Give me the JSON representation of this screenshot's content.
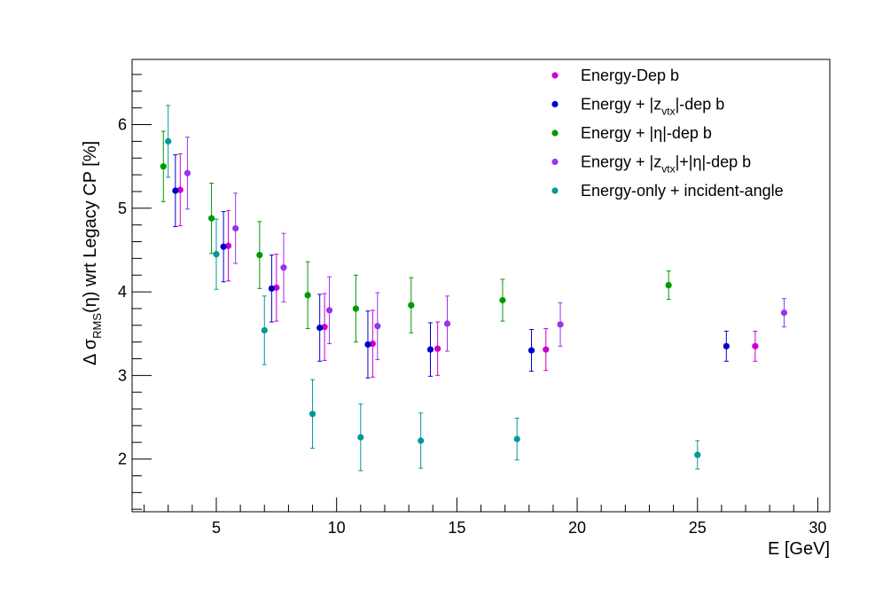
{
  "chart_data": {
    "type": "scatter",
    "title": "",
    "xlabel": "E  [GeV]",
    "ylabel_parts": [
      "Δ σ",
      "RMS",
      "(η) wrt Legacy CP  [%]"
    ],
    "xlim": [
      1.5,
      30.5
    ],
    "ylim": [
      1.37,
      6.78
    ],
    "x_ticks": [
      5,
      10,
      15,
      20,
      25,
      30
    ],
    "y_ticks": [
      2,
      3,
      4,
      5,
      6
    ],
    "grid": false,
    "legend_position": "top-right",
    "series": [
      {
        "name_parts": [
          [
            "Energy-Dep b",
            false
          ]
        ],
        "color": "#cc00cc",
        "points": [
          {
            "x": 3.5,
            "y": 5.22,
            "err": 0.43
          },
          {
            "x": 5.5,
            "y": 4.55,
            "err": 0.42
          },
          {
            "x": 7.5,
            "y": 4.05,
            "err": 0.4
          },
          {
            "x": 9.5,
            "y": 3.58,
            "err": 0.4
          },
          {
            "x": 11.5,
            "y": 3.38,
            "err": 0.4
          },
          {
            "x": 14.2,
            "y": 3.32,
            "err": 0.32
          },
          {
            "x": 18.7,
            "y": 3.31,
            "err": 0.25
          },
          {
            "x": 27.4,
            "y": 3.35,
            "err": 0.18
          }
        ]
      },
      {
        "name_parts": [
          [
            "Energy + |z",
            false
          ],
          [
            "vtx",
            true
          ],
          [
            "|-dep b",
            false
          ]
        ],
        "color": "#0000cc",
        "points": [
          {
            "x": 3.3,
            "y": 5.21,
            "err": 0.43
          },
          {
            "x": 5.3,
            "y": 4.54,
            "err": 0.42
          },
          {
            "x": 7.3,
            "y": 4.04,
            "err": 0.4
          },
          {
            "x": 9.3,
            "y": 3.57,
            "err": 0.4
          },
          {
            "x": 11.3,
            "y": 3.37,
            "err": 0.4
          },
          {
            "x": 13.9,
            "y": 3.31,
            "err": 0.32
          },
          {
            "x": 18.1,
            "y": 3.3,
            "err": 0.25
          },
          {
            "x": 26.2,
            "y": 3.35,
            "err": 0.18
          }
        ]
      },
      {
        "name_parts": [
          [
            "Energy + |η|-dep b",
            false
          ]
        ],
        "color": "#009900",
        "points": [
          {
            "x": 2.8,
            "y": 5.5,
            "err": 0.42
          },
          {
            "x": 4.8,
            "y": 4.88,
            "err": 0.42
          },
          {
            "x": 6.8,
            "y": 4.44,
            "err": 0.4
          },
          {
            "x": 8.8,
            "y": 3.96,
            "err": 0.4
          },
          {
            "x": 10.8,
            "y": 3.8,
            "err": 0.4
          },
          {
            "x": 13.1,
            "y": 3.84,
            "err": 0.33
          },
          {
            "x": 16.9,
            "y": 3.9,
            "err": 0.25
          },
          {
            "x": 23.8,
            "y": 4.08,
            "err": 0.17
          }
        ]
      },
      {
        "name_parts": [
          [
            "Energy + |z",
            false
          ],
          [
            "vtx",
            true
          ],
          [
            "|+|η|-dep b",
            false
          ]
        ],
        "color": "#9933ee",
        "points": [
          {
            "x": 3.8,
            "y": 5.42,
            "err": 0.43
          },
          {
            "x": 5.8,
            "y": 4.76,
            "err": 0.42
          },
          {
            "x": 7.8,
            "y": 4.29,
            "err": 0.41
          },
          {
            "x": 9.7,
            "y": 3.78,
            "err": 0.4
          },
          {
            "x": 11.7,
            "y": 3.59,
            "err": 0.4
          },
          {
            "x": 14.6,
            "y": 3.62,
            "err": 0.33
          },
          {
            "x": 19.3,
            "y": 3.61,
            "err": 0.26
          },
          {
            "x": 28.6,
            "y": 3.75,
            "err": 0.17
          }
        ]
      },
      {
        "name_parts": [
          [
            "Energy-only + incident-angle",
            false
          ]
        ],
        "color": "#009999",
        "points": [
          {
            "x": 3.0,
            "y": 5.8,
            "err": 0.43
          },
          {
            "x": 5.0,
            "y": 4.45,
            "err": 0.42
          },
          {
            "x": 7.0,
            "y": 3.54,
            "err": 0.41
          },
          {
            "x": 9.0,
            "y": 2.54,
            "err": 0.41
          },
          {
            "x": 11.0,
            "y": 2.26,
            "err": 0.4
          },
          {
            "x": 13.5,
            "y": 2.22,
            "err": 0.33
          },
          {
            "x": 17.5,
            "y": 2.24,
            "err": 0.25
          },
          {
            "x": 25.0,
            "y": 2.05,
            "err": 0.17
          }
        ]
      }
    ]
  }
}
